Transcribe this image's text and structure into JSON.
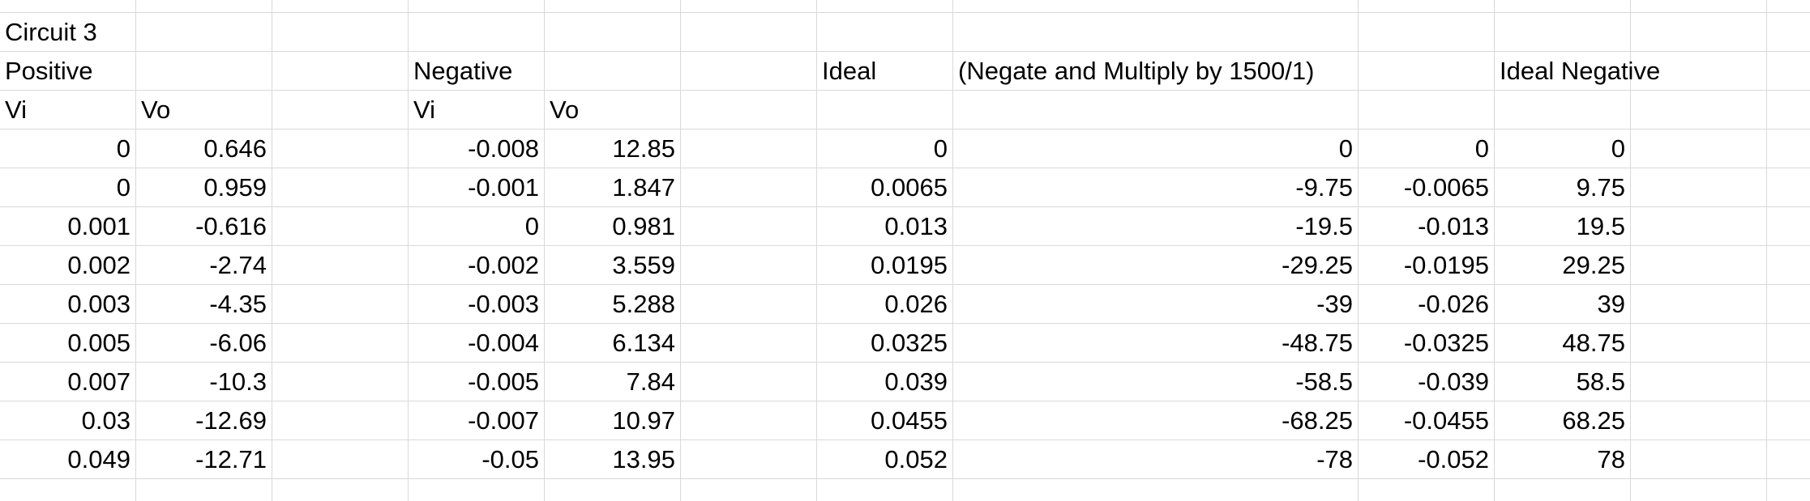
{
  "sheet": {
    "title_row": [
      "Circuit 3"
    ],
    "section_row": {
      "positive": "Positive",
      "negative": "Negative",
      "ideal": "Ideal",
      "ideal_note": "(Negate and Multiply by 1500/1)",
      "ideal_negative": "Ideal Negative"
    },
    "header_row": {
      "pos_vi": "Vi",
      "pos_vo": "Vo",
      "neg_vi": "Vi",
      "neg_vo": "Vo"
    },
    "rows": [
      [
        "0",
        "0.646",
        "-0.008",
        "12.85",
        "0",
        "0",
        "0",
        "0"
      ],
      [
        "0",
        "0.959",
        "-0.001",
        "1.847",
        "0.0065",
        "-9.75",
        "-0.0065",
        "9.75"
      ],
      [
        "0.001",
        "-0.616",
        "0",
        "0.981",
        "0.013",
        "-19.5",
        "-0.013",
        "19.5"
      ],
      [
        "0.002",
        "-2.74",
        "-0.002",
        "3.559",
        "0.0195",
        "-29.25",
        "-0.0195",
        "29.25"
      ],
      [
        "0.003",
        "-4.35",
        "-0.003",
        "5.288",
        "0.026",
        "-39",
        "-0.026",
        "39"
      ],
      [
        "0.005",
        "-6.06",
        "-0.004",
        "6.134",
        "0.0325",
        "-48.75",
        "-0.0325",
        "48.75"
      ],
      [
        "0.007",
        "-10.3",
        "-0.005",
        "7.84",
        "0.039",
        "-58.5",
        "-0.039",
        "58.5"
      ],
      [
        "0.03",
        "-12.69",
        "-0.007",
        "10.97",
        "0.0455",
        "-68.25",
        "-0.0455",
        "68.25"
      ],
      [
        "0.049",
        "-12.71",
        "-0.05",
        "13.95",
        "0.052",
        "-78",
        "-0.052",
        "78"
      ]
    ]
  },
  "colors": {
    "gridline": "#d9d9d9",
    "text": "#000000",
    "background": "#ffffff"
  }
}
